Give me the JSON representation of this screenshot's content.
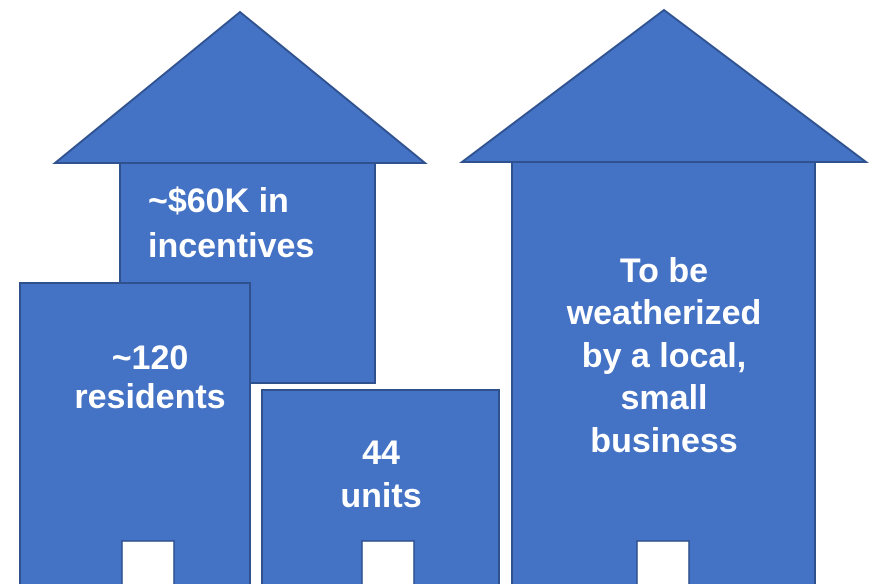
{
  "labels": {
    "incentives": [
      "~$60K in",
      "incentives"
    ],
    "residents": [
      "~120",
      "residents"
    ],
    "units": [
      "44",
      "units"
    ],
    "business": [
      "To be",
      "weatherized",
      "by a local,",
      "small",
      "business"
    ]
  }
}
